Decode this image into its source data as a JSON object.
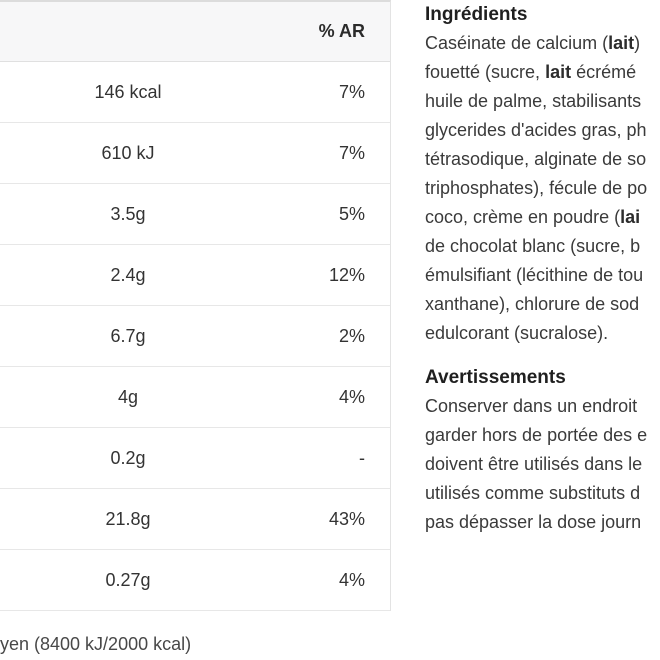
{
  "colors": {
    "header_bg": "#f7f7f8",
    "row_border": "#e7e7e7",
    "table_text": "#333333",
    "body_text": "#3a3a3a",
    "heading_text": "#1f1f1f"
  },
  "table": {
    "header": {
      "ar_label": "% AR"
    },
    "rows": [
      {
        "value": "146 kcal",
        "ar": "7%"
      },
      {
        "value": "610 kJ",
        "ar": "7%"
      },
      {
        "value": "3.5g",
        "ar": "5%"
      },
      {
        "value": "2.4g",
        "ar": "12%"
      },
      {
        "value": "6.7g",
        "ar": "2%"
      },
      {
        "value": "4g",
        "ar": "4%"
      },
      {
        "value": "0.2g",
        "ar": "-"
      },
      {
        "value": "21.8g",
        "ar": "43%"
      },
      {
        "value": "0.27g",
        "ar": "4%"
      }
    ],
    "footnote": "yen (8400 kJ/2000 kcal)"
  },
  "ingredients": {
    "heading": "Ingrédients",
    "lines": [
      {
        "pre": "Caséinate de calcium (",
        "bold": "lait",
        "post": ")"
      },
      {
        "pre": "fouetté (sucre, ",
        "bold": "lait",
        "post": " écrémé"
      },
      {
        "pre": "huile de palme, stabilisants",
        "bold": "",
        "post": ""
      },
      {
        "pre": "glycerides d'acides gras, ph",
        "bold": "",
        "post": ""
      },
      {
        "pre": "tétrasodique, alginate de so",
        "bold": "",
        "post": ""
      },
      {
        "pre": "triphosphates), fécule de po",
        "bold": "",
        "post": ""
      },
      {
        "pre": "coco, crème en poudre (",
        "bold": "lai",
        "post": ""
      },
      {
        "pre": "de chocolat blanc (sucre, b",
        "bold": "",
        "post": ""
      },
      {
        "pre": "émulsifiant (lécithine de tou",
        "bold": "",
        "post": ""
      },
      {
        "pre": "xanthane), chlorure de sod",
        "bold": "",
        "post": ""
      },
      {
        "pre": "edulcorant (sucralose).",
        "bold": "",
        "post": ""
      }
    ]
  },
  "warnings": {
    "heading": "Avertissements",
    "lines": [
      "Conserver dans un endroit",
      "garder hors de portée des e",
      "doivent être utilisés dans le",
      "utilisés comme substituts d",
      "pas dépasser la dose journ"
    ]
  }
}
